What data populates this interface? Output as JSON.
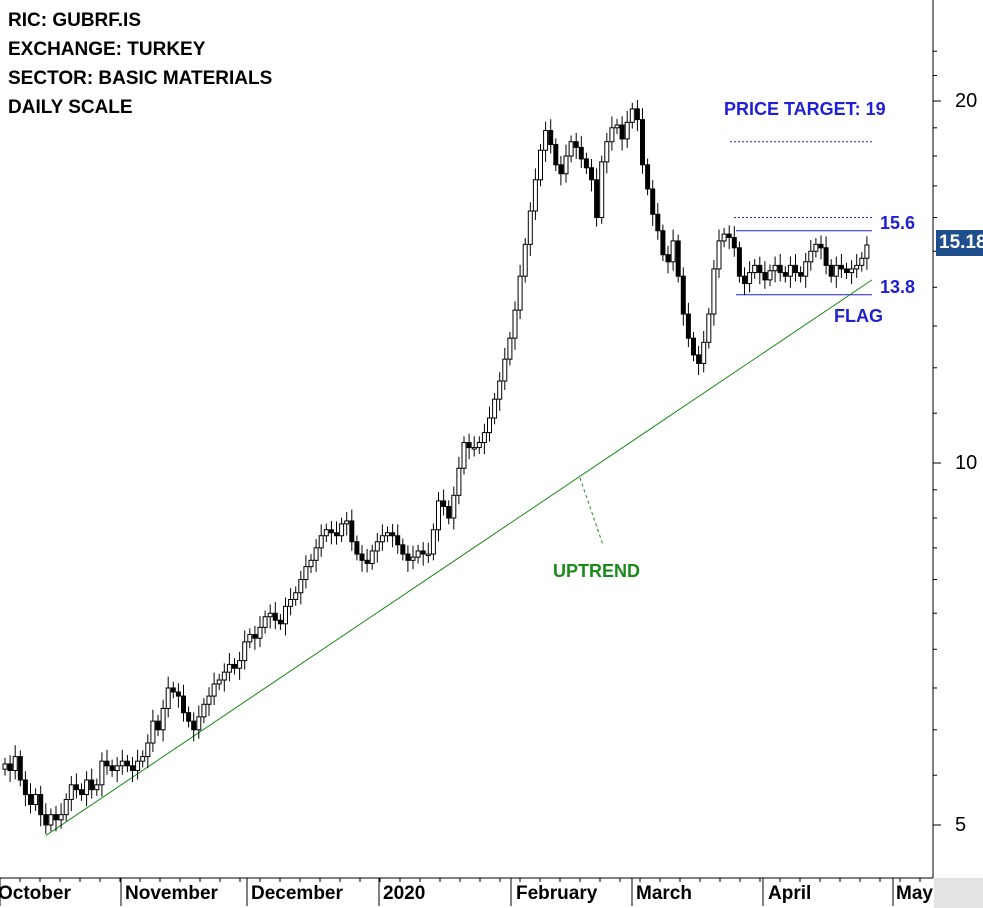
{
  "info": {
    "ric": "RIC: GUBRF.IS",
    "exchange": "EXCHANGE: TURKEY",
    "sector": "SECTOR: BASIC MATERIALS",
    "scale": "DAILY SCALE"
  },
  "colors": {
    "up_candle": "#ffffff",
    "down_candle": "#000000",
    "trendline": "#1a8a1a",
    "annotation_blue": "#1f1fd6",
    "badge": "#1f4e8c"
  },
  "chart_data": {
    "type": "candlestick",
    "scale": "log",
    "ylim": [
      4.6,
      22
    ],
    "yticks": [
      {
        "value": 5,
        "label": "5"
      },
      {
        "value": 10,
        "label": "10"
      },
      {
        "value": 20,
        "label": "20"
      }
    ],
    "xticks": [
      "October",
      "November",
      "December",
      "2020",
      "February",
      "March",
      "April",
      "May"
    ],
    "last_price": "15.18",
    "annotations": {
      "price_target": "PRICE TARGET: 19",
      "upper": "15.6",
      "lower": "13.8",
      "flag": "FLAG",
      "uptrend": "UPTREND"
    },
    "levels": {
      "price_target": 19,
      "resistance": 15.6,
      "support": 13.8,
      "flag_top_dotted": 16.0
    },
    "trendline": {
      "start": {
        "bar": 8,
        "price": 4.9
      },
      "end": {
        "bar": 170,
        "price": 14.2
      }
    },
    "closes": [
      5.62,
      5.55,
      5.7,
      5.45,
      5.3,
      5.2,
      5.3,
      5.1,
      5.0,
      5.1,
      5.05,
      5.1,
      5.25,
      5.4,
      5.35,
      5.3,
      5.45,
      5.35,
      5.4,
      5.65,
      5.6,
      5.55,
      5.6,
      5.65,
      5.6,
      5.55,
      5.65,
      5.7,
      5.85,
      6.1,
      6.0,
      6.25,
      6.5,
      6.45,
      6.4,
      6.2,
      6.1,
      6.0,
      6.15,
      6.3,
      6.4,
      6.55,
      6.6,
      6.7,
      6.8,
      6.75,
      6.85,
      7.1,
      7.2,
      7.15,
      7.3,
      7.45,
      7.5,
      7.4,
      7.35,
      7.6,
      7.7,
      7.8,
      8.0,
      8.2,
      8.3,
      8.5,
      8.7,
      8.8,
      8.75,
      8.7,
      8.9,
      8.95,
      8.6,
      8.4,
      8.3,
      8.25,
      8.45,
      8.6,
      8.7,
      8.75,
      8.7,
      8.55,
      8.4,
      8.3,
      8.35,
      8.45,
      8.4,
      8.4,
      8.8,
      9.3,
      9.2,
      9.0,
      9.4,
      9.9,
      10.4,
      10.3,
      10.3,
      10.4,
      10.6,
      10.9,
      11.3,
      11.7,
      12.2,
      12.7,
      13.4,
      14.3,
      15.2,
      16.2,
      17.2,
      18.2,
      18.9,
      18.4,
      17.7,
      17.4,
      18.0,
      18.5,
      18.3,
      17.9,
      17.6,
      17.2,
      16.0,
      17.8,
      18.5,
      19.0,
      19.1,
      18.6,
      19.2,
      19.7,
      19.3,
      17.7,
      16.9,
      16.1,
      15.6,
      14.9,
      14.7,
      15.3,
      14.3,
      13.3,
      12.7,
      12.3,
      12.1,
      12.6,
      13.3,
      14.5,
      15.3,
      15.5,
      15.4,
      15.1,
      14.3,
      14.1,
      14.4,
      14.6,
      14.4,
      14.2,
      14.45,
      14.6,
      14.4,
      14.3,
      14.6,
      14.4,
      14.3,
      14.7,
      15.0,
      15.2,
      15.1,
      14.6,
      14.3,
      14.6,
      14.5,
      14.4,
      14.5,
      14.6,
      14.8,
      15.18
    ]
  }
}
